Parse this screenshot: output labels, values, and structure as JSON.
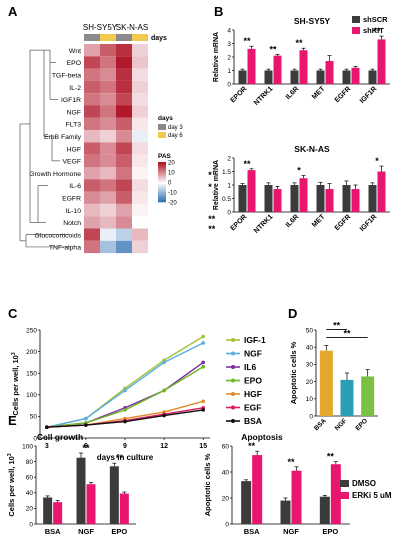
{
  "panels": {
    "a": "A",
    "b": "B",
    "c": "C",
    "d": "D",
    "e": "E"
  },
  "colors": {
    "scr": "#3b3b3b",
    "kit": "#e8166f",
    "dmso": "#3b3b3b",
    "erki": "#e8166f",
    "day3": "#8a8a8a",
    "day6": "#f2c94c",
    "heatHi": "#b2182b",
    "heatLo": "#2166ac"
  },
  "chart_data": [
    {
      "id": "A",
      "type": "heatmap",
      "title": "",
      "columns": [
        "SH-SY5Y",
        "SH-SY5Y",
        "SK-N-AS",
        "SK-N-AS"
      ],
      "column_groups": [
        "SH-SY5Y",
        "SK-N-AS"
      ],
      "days_label": "days",
      "day_legend": {
        "title": "days",
        "items": [
          "day 3",
          "day 6"
        ]
      },
      "scale": {
        "title": "PAS",
        "ticks": [
          20,
          10,
          0,
          -10,
          -20
        ]
      },
      "rows": [
        "Wnt",
        "EPO",
        "TGF-beta",
        "IL-2",
        "IGF1R",
        "NGF",
        "FLT3",
        "ErbB Family",
        "HGF",
        "VEGF",
        "Growth Hormone",
        "IL-6",
        "EGFR",
        "IL-10",
        "Notch",
        "Glucocorticoids",
        "TNF-alpha"
      ],
      "values": [
        [
          8,
          14,
          18,
          4
        ],
        [
          16,
          12,
          20,
          5
        ],
        [
          12,
          10,
          18,
          3
        ],
        [
          14,
          12,
          18,
          4
        ],
        [
          12,
          10,
          16,
          3
        ],
        [
          16,
          12,
          20,
          4
        ],
        [
          12,
          10,
          14,
          2
        ],
        [
          6,
          4,
          10,
          -2
        ],
        [
          14,
          10,
          16,
          3
        ],
        [
          12,
          10,
          14,
          2
        ],
        [
          8,
          6,
          12,
          1
        ],
        [
          14,
          12,
          16,
          3
        ],
        [
          10,
          8,
          14,
          2
        ],
        [
          6,
          4,
          8,
          1
        ],
        [
          8,
          6,
          10,
          0
        ],
        [
          16,
          -2,
          -6,
          6
        ],
        [
          12,
          -8,
          -14,
          4
        ]
      ]
    },
    {
      "id": "B1",
      "type": "bar",
      "title": "SH-SY5Y",
      "ylabel": "Relative mRNA",
      "ylim": [
        0,
        4
      ],
      "yticks": [
        0,
        1,
        2,
        3,
        4
      ],
      "categories": [
        "EPOR",
        "NTRK1",
        "IL6R",
        "MET",
        "EGFR",
        "IGF1R"
      ],
      "series": [
        {
          "name": "shSCR",
          "values": [
            1,
            1,
            1,
            1,
            1,
            1
          ],
          "err": [
            0.1,
            0.1,
            0.1,
            0.1,
            0.1,
            0.1
          ]
        },
        {
          "name": "shKIT",
          "values": [
            2.6,
            2.1,
            2.5,
            1.7,
            1.2,
            3.3
          ],
          "err": [
            0.2,
            0.1,
            0.15,
            0.4,
            0.1,
            0.25
          ]
        }
      ],
      "sig": [
        "**",
        "**",
        "**",
        "",
        "",
        "**"
      ]
    },
    {
      "id": "B2",
      "type": "bar",
      "title": "SK-N-AS",
      "ylabel": "Relative mRNA",
      "ylim": [
        0,
        2
      ],
      "yticks": [
        0,
        0.5,
        1,
        1.5,
        2
      ],
      "categories": [
        "EPOR",
        "NTRK1",
        "IL6R",
        "MET",
        "EGFR",
        "IGF1R"
      ],
      "series": [
        {
          "name": "shSCR",
          "values": [
            1,
            1,
            1,
            1,
            1,
            1
          ],
          "err": [
            0.05,
            0.08,
            0.08,
            0.1,
            0.15,
            0.08
          ]
        },
        {
          "name": "shKIT",
          "values": [
            1.55,
            0.85,
            1.25,
            0.85,
            0.85,
            1.5
          ],
          "err": [
            0.05,
            0.1,
            0.1,
            0.2,
            0.15,
            0.2
          ]
        }
      ],
      "sig": [
        "**",
        "",
        "*",
        "",
        "",
        "*"
      ]
    },
    {
      "id": "C",
      "type": "line",
      "xlabel": "days in culture",
      "ylabel": "Cells per well, 10",
      "ylabel_sup": "3",
      "x": [
        3,
        6,
        9,
        12,
        15
      ],
      "ylim": [
        0,
        250
      ],
      "yticks": [
        0,
        50,
        100,
        150,
        200,
        250
      ],
      "series": [
        {
          "name": "IGF-1",
          "color": "#a6c23a",
          "values": [
            25,
            45,
            115,
            180,
            235
          ]
        },
        {
          "name": "NGF",
          "color": "#5aaee0",
          "values": [
            25,
            45,
            110,
            175,
            220
          ]
        },
        {
          "name": "IL6",
          "color": "#7b2fa3",
          "values": [
            25,
            35,
            70,
            110,
            175
          ]
        },
        {
          "name": "EPO",
          "color": "#6fb928",
          "values": [
            25,
            35,
            65,
            110,
            165
          ]
        },
        {
          "name": "HGF",
          "color": "#e08a2c",
          "values": [
            25,
            30,
            45,
            60,
            85
          ]
        },
        {
          "name": "EGF",
          "color": "#d81b60",
          "values": [
            25,
            30,
            40,
            55,
            70
          ]
        },
        {
          "name": "BSA",
          "color": "#111111",
          "values": [
            25,
            30,
            38,
            52,
            65
          ]
        }
      ],
      "sig": [
        "**",
        "**",
        "*",
        "*",
        "",
        "",
        ""
      ]
    },
    {
      "id": "D",
      "type": "bar",
      "ylabel": "Apoptotic cells %",
      "ylim": [
        0,
        50
      ],
      "yticks": [
        0,
        10,
        20,
        30,
        40,
        50
      ],
      "categories": [
        "BSA",
        "NGF",
        "EPO"
      ],
      "values": [
        38,
        21,
        23
      ],
      "err": [
        3,
        4,
        4
      ],
      "colors": [
        "#e3a82d",
        "#2b9fb3",
        "#7bc043"
      ],
      "brackets": [
        {
          "from": 0,
          "to": 1,
          "label": "**"
        },
        {
          "from": 0,
          "to": 2,
          "label": "**"
        }
      ]
    },
    {
      "id": "E1",
      "type": "bar",
      "title": "Cell growth",
      "ylabel": "Cells per well, 10",
      "ylabel_sup": "3",
      "ylim": [
        0,
        100
      ],
      "yticks": [
        0,
        20,
        40,
        60,
        80,
        100
      ],
      "categories": [
        "BSA",
        "NGF",
        "EPO"
      ],
      "series": [
        {
          "name": "DMSO",
          "values": [
            34,
            85,
            74
          ],
          "err": [
            2,
            6,
            4
          ]
        },
        {
          "name": "ERKi 5 uM",
          "values": [
            28,
            51,
            39
          ],
          "err": [
            2,
            2,
            2
          ]
        }
      ],
      "sig": [
        "",
        "**",
        "**"
      ]
    },
    {
      "id": "E2",
      "type": "bar",
      "title": "Apoptosis",
      "ylabel": "Apoptotic cells %",
      "ylim": [
        0,
        60
      ],
      "yticks": [
        0,
        20,
        40,
        60
      ],
      "categories": [
        "BSA",
        "NGF",
        "EPO"
      ],
      "series": [
        {
          "name": "DMSO",
          "values": [
            33,
            18,
            21
          ],
          "err": [
            1,
            2,
            1
          ]
        },
        {
          "name": "ERKi 5 uM",
          "values": [
            53,
            41,
            46
          ],
          "err": [
            3,
            3,
            2
          ]
        }
      ],
      "sig": [
        "**",
        "**",
        "**"
      ]
    }
  ]
}
